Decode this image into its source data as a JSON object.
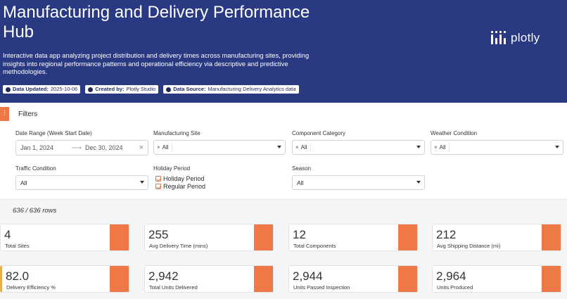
{
  "header": {
    "title": "Manufacturing and Delivery Performance Hub",
    "description": "Interactive data app analyzing project distribution and delivery times across manufacturing sites, providing insights into regional performance patterns and operational efficiency via descriptive and predictive methodologies.",
    "badges": [
      {
        "key": "Data Updated:",
        "value": "2025-10-06",
        "icon": "check-circle-icon"
      },
      {
        "key": "Created by:",
        "value": "Plotly Studio",
        "icon": "user-icon"
      },
      {
        "key": "Data Source:",
        "value": "Manufacturing Delivery Analytics data",
        "icon": "database-icon"
      }
    ],
    "logo_text": "plotly"
  },
  "filters": {
    "title": "Filters",
    "date_range": {
      "label": "Date Range (Week Start Date)",
      "start": "Jan 1, 2024",
      "end": "Dec 30, 2024",
      "arrow": "⟶",
      "clear": "×"
    },
    "manufacturing_site": {
      "label": "Manufacturing Site",
      "chip": "All",
      "chip_x": "×"
    },
    "component_category": {
      "label": "Component Category",
      "chip": "All",
      "chip_x": "×"
    },
    "weather_condition": {
      "label": "Weather Condition",
      "chip": "All",
      "chip_x": "×"
    },
    "traffic_condition": {
      "label": "Traffic Condition",
      "value": "All"
    },
    "holiday_period": {
      "label": "Holiday Period",
      "options": [
        "Holiday Period",
        "Regular Period"
      ]
    },
    "season": {
      "label": "Season",
      "value": "All"
    }
  },
  "row_count": "636 / 636 rows",
  "kpis": [
    {
      "value": "4",
      "label": "Total Sites"
    },
    {
      "value": "255",
      "label": "Avg Delivery Time (mins)"
    },
    {
      "value": "12",
      "label": "Total Components"
    },
    {
      "value": "212",
      "label": "Avg Shipping Distance (mi)"
    },
    {
      "value": "82.0",
      "label": "Delivery Efficiency %"
    },
    {
      "value": "2,942",
      "label": "Total Units Delivered"
    },
    {
      "value": "2,944",
      "label": "Units Passed Inspection"
    },
    {
      "value": "2,964",
      "label": "Units Produced"
    }
  ],
  "colors": {
    "header_bg": "#2a3a82",
    "accent": "#ef7847",
    "highlight": "#e8b04d"
  }
}
